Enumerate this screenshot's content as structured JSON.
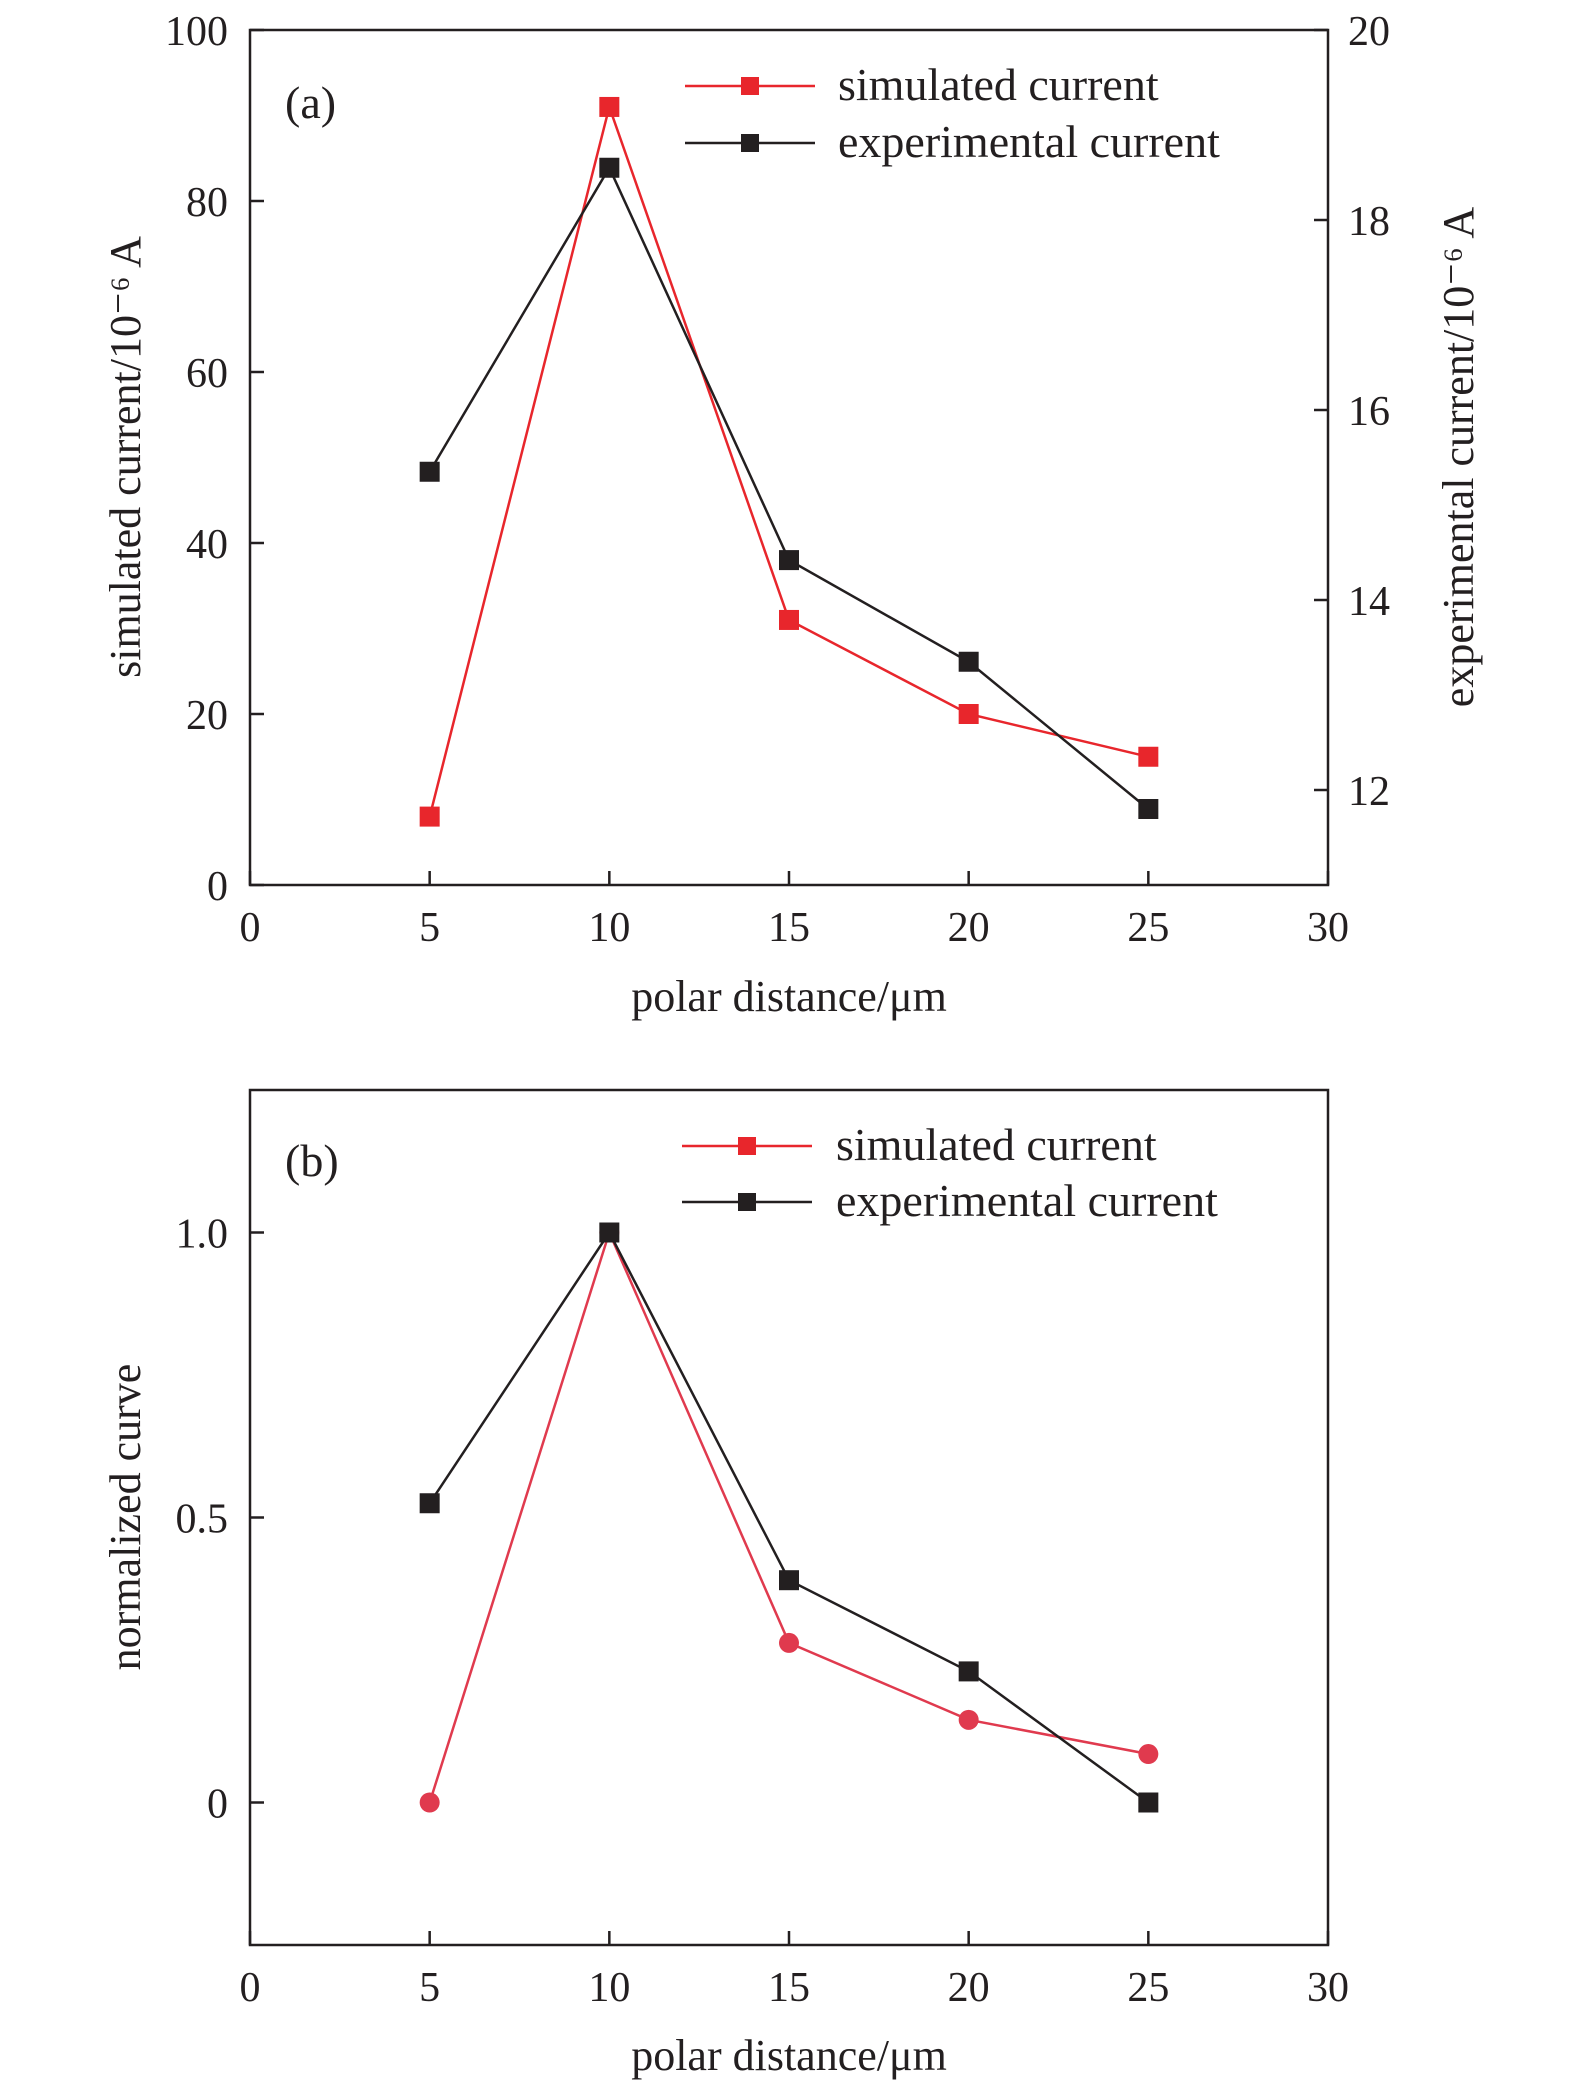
{
  "chart_data": [
    {
      "type": "line",
      "panel_label": "(a)",
      "xlabel": "polar distance/μm",
      "ylabel": "simulated current/10⁻⁶ A",
      "y2label": "experimental current/10⁻⁶ A",
      "xlim": [
        0,
        30
      ],
      "ylim": [
        0,
        100
      ],
      "y2lim": [
        11,
        20
      ],
      "xticks": [
        "0",
        "5",
        "10",
        "15",
        "20",
        "25",
        "30"
      ],
      "yticks": [
        "0",
        "20",
        "40",
        "60",
        "80",
        "100"
      ],
      "y2ticks": [
        "12",
        "14",
        "16",
        "18",
        "20"
      ],
      "legend_position": "top-right",
      "grid": false,
      "x": [
        5,
        10,
        15,
        20,
        25
      ],
      "series": [
        {
          "name": "simulated current",
          "axis": "left",
          "marker": "square",
          "color": "#e8262c",
          "values": [
            8,
            91,
            31,
            20,
            15
          ]
        },
        {
          "name": "experimental current",
          "axis": "right",
          "marker": "square",
          "color": "#231f20",
          "values": [
            15.35,
            18.55,
            14.42,
            13.35,
            11.8
          ]
        }
      ]
    },
    {
      "type": "line",
      "panel_label": "(b)",
      "xlabel": "polar distance/μm",
      "ylabel": "normalized curve",
      "xlim": [
        0,
        30
      ],
      "ylim": [
        -0.25,
        1.25
      ],
      "xticks": [
        "0",
        "5",
        "10",
        "15",
        "20",
        "25",
        "30"
      ],
      "yticks": [
        "0",
        "0.5",
        "1.0"
      ],
      "legend_position": "top-right",
      "grid": false,
      "x": [
        5,
        10,
        15,
        20,
        25
      ],
      "series": [
        {
          "name": "simulated current",
          "marker": "circle",
          "legend_marker": "square",
          "color": "#e03a4e",
          "legend_color": "#e8262c",
          "values": [
            0,
            1.0,
            0.28,
            0.145,
            0.085
          ]
        },
        {
          "name": "experimental current",
          "marker": "square",
          "color": "#231f20",
          "values": [
            0.525,
            1.0,
            0.39,
            0.23,
            0
          ]
        }
      ]
    }
  ]
}
